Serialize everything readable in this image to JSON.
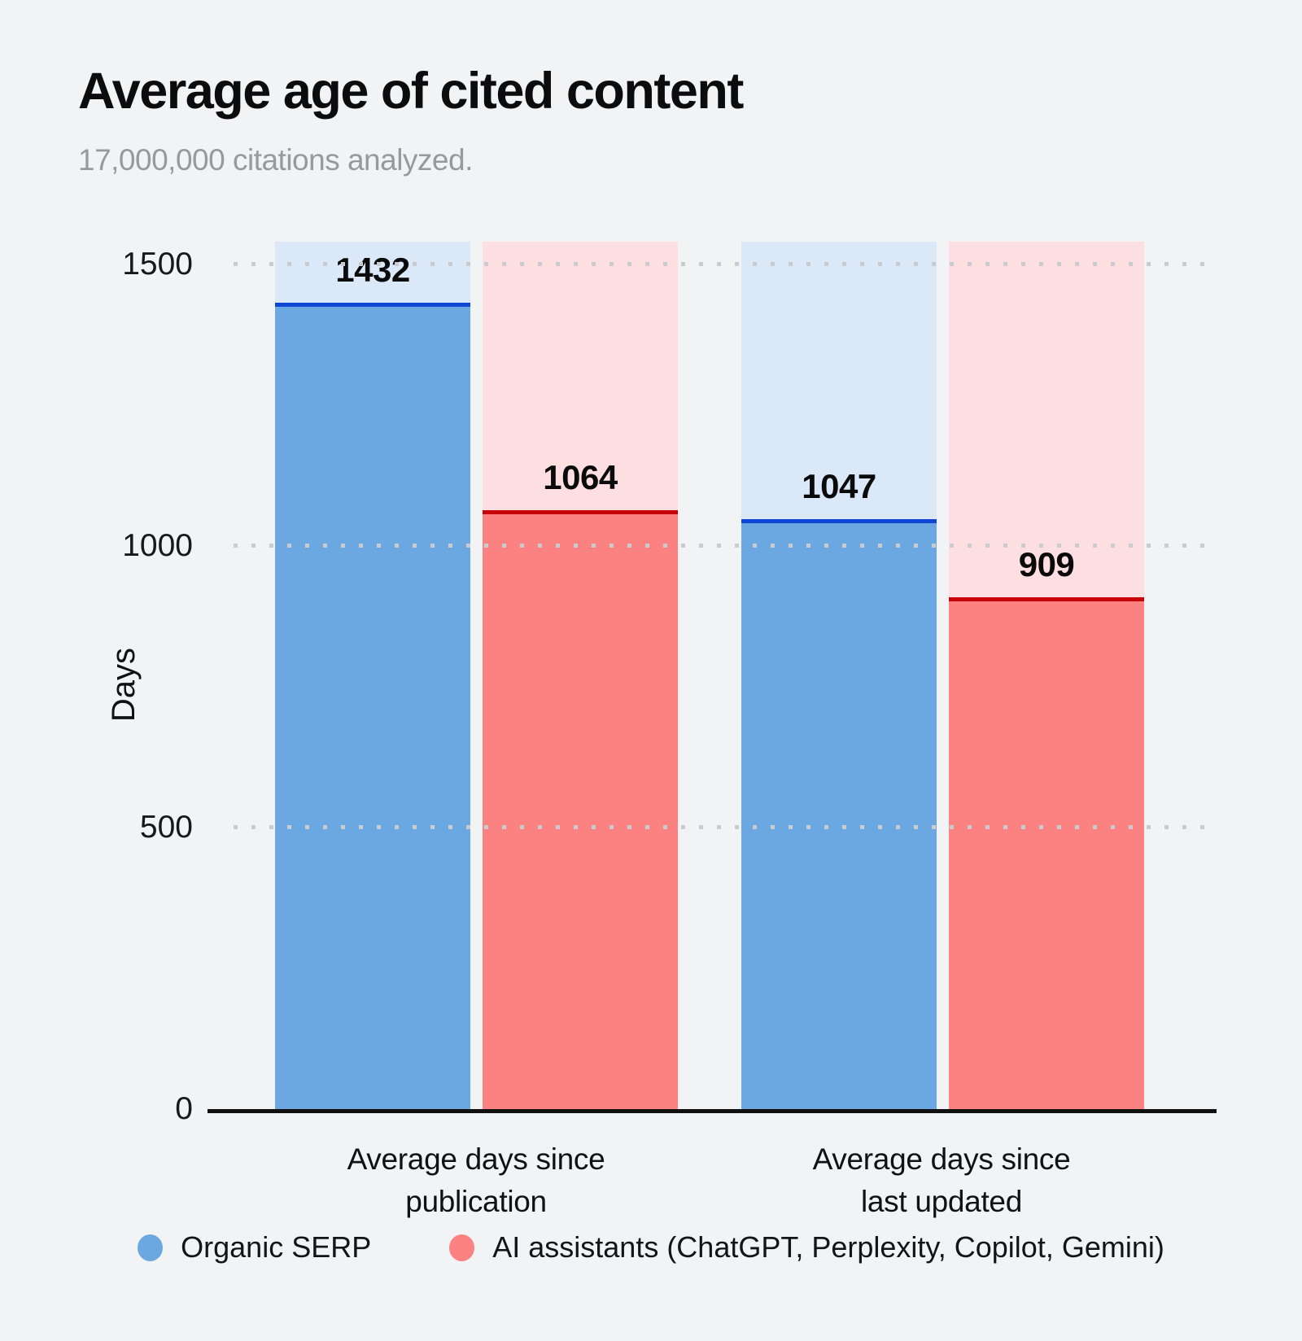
{
  "header": {
    "title": "Average age of cited content",
    "subtitle": "17,000,000 citations analyzed."
  },
  "chart_data": {
    "type": "bar",
    "title": "Average age of cited content",
    "subtitle": "17,000,000 citations analyzed.",
    "categories": [
      [
        "Average days since",
        "publication"
      ],
      [
        "Average days since",
        "last updated"
      ]
    ],
    "series": [
      {
        "name": "Organic SERP",
        "values": [
          1432,
          1047
        ],
        "fill_color": "#6ba7e0",
        "track_color": "#dbe8f8",
        "edge_color": "#0f47d4"
      },
      {
        "name": "AI assistants (ChatGPT, Perplexity, Copilot, Gemini)",
        "values": [
          1064,
          909
        ],
        "fill_color": "#fc8282",
        "track_color": "#fedfe1",
        "edge_color": "#c70107"
      }
    ],
    "xlabel": "",
    "ylabel": "Days",
    "yticks": [
      0,
      500,
      1000,
      1500
    ],
    "ylim": [
      0,
      1540
    ],
    "grid": "horizontal dotted gridlines drawn over bars",
    "legend_position": "bottom",
    "bar_style": "full-height pale track behind each bar, solid fill to value, dark top edge line, value label above edge"
  },
  "colors": {
    "background": "#f2f3f5",
    "title_text": "#0c0c0d",
    "subtitle_text": "#97999f",
    "axis_line": "#101010",
    "grid_dots": "#c9cbce",
    "tick_text": "#17181a",
    "value_text": "#0b0b0c"
  }
}
